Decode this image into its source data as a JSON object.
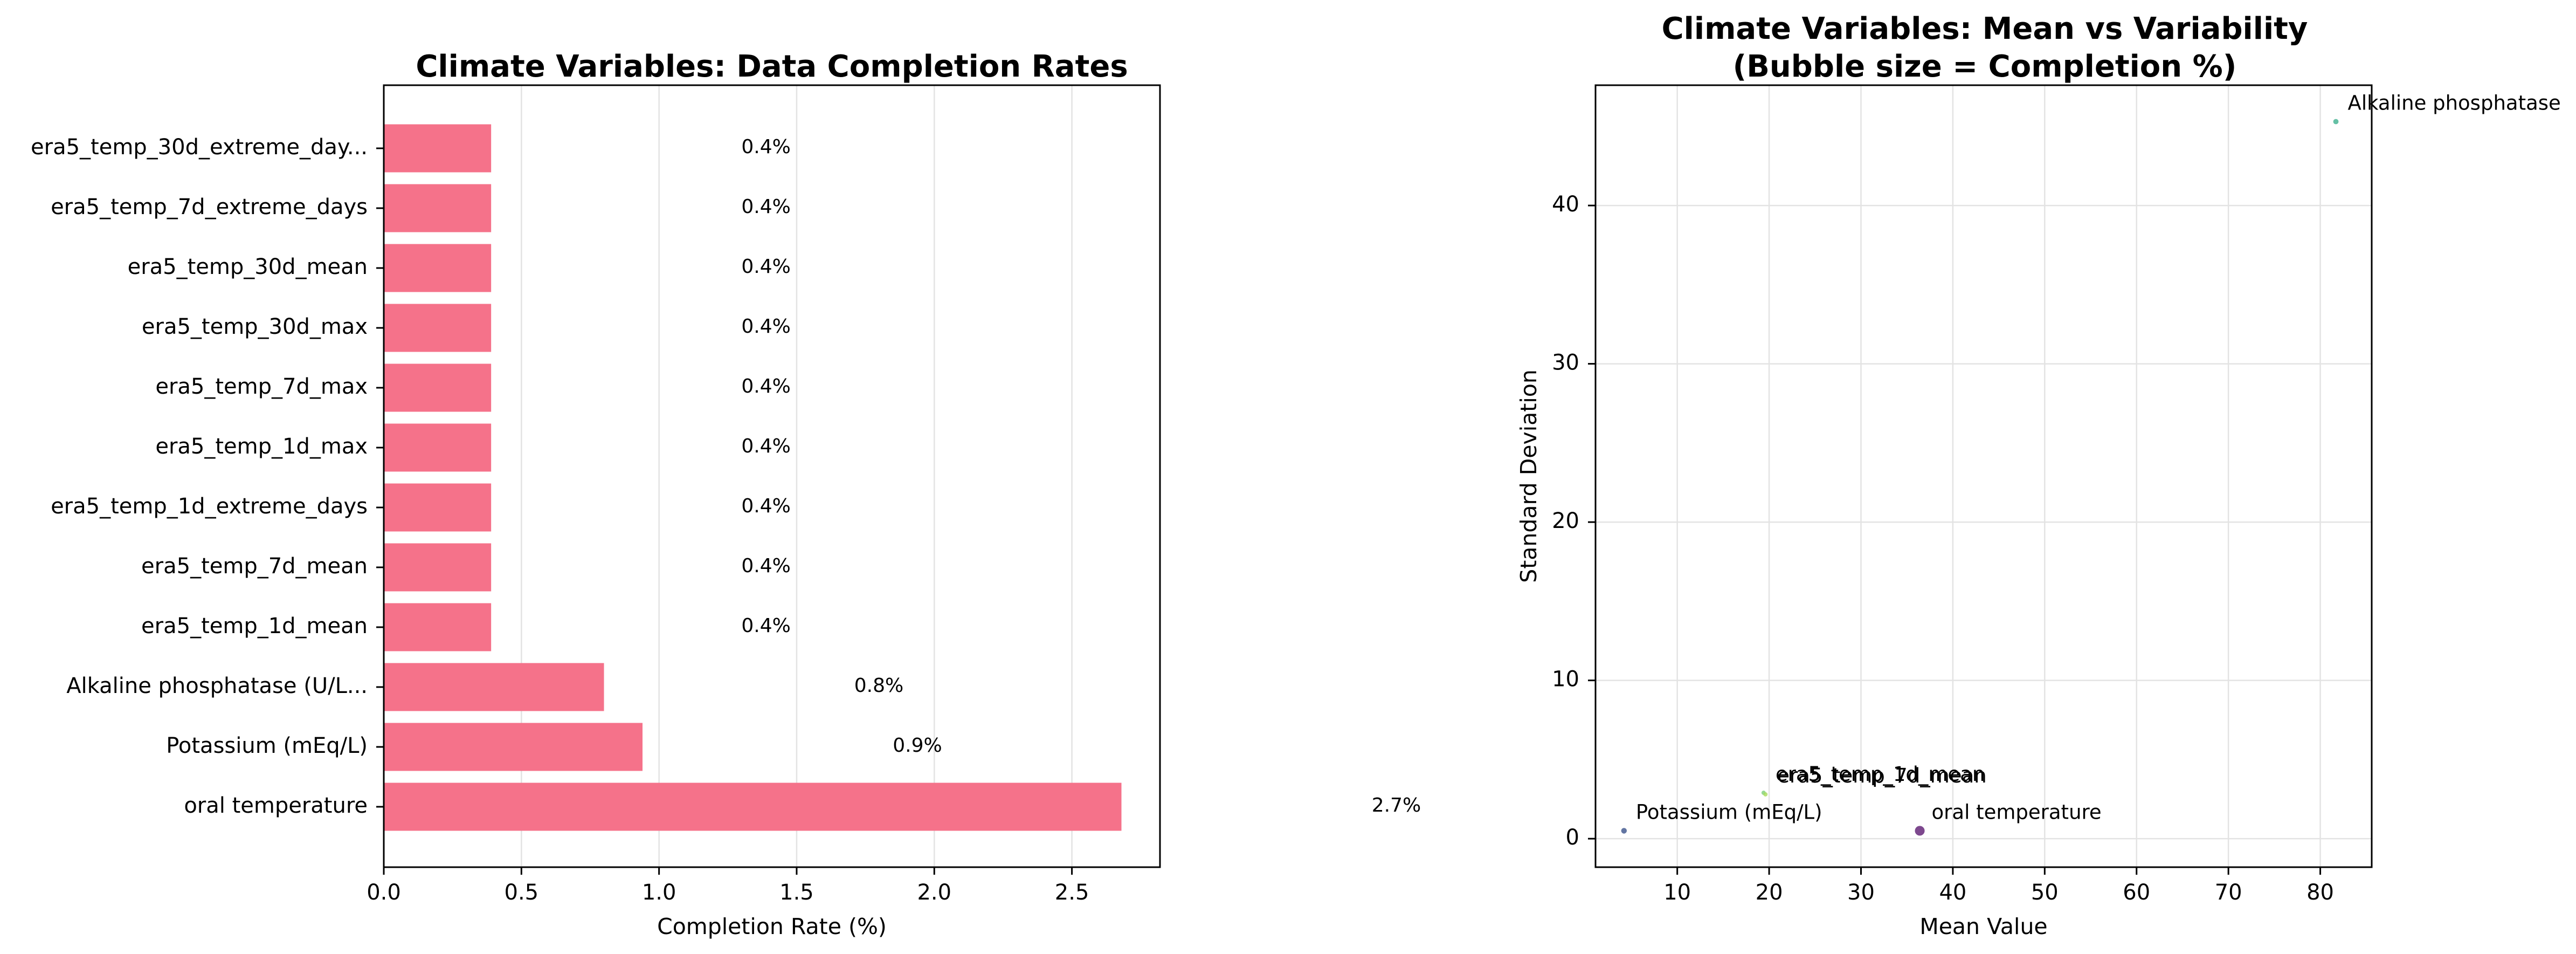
{
  "chart_data": [
    {
      "type": "bar",
      "orientation": "horizontal",
      "title": "Climate Variables: Data Completion Rates",
      "xlabel": "Completion Rate (%)",
      "ylabel": "",
      "xlim": [
        0,
        2.82
      ],
      "xticks": [
        "0.0",
        "0.5",
        "1.0",
        "1.5",
        "2.0",
        "2.5"
      ],
      "grid": "vertical",
      "color": "#f5728a",
      "categories": [
        "era5_temp_30d_extreme_day...",
        "era5_temp_7d_extreme_days",
        "era5_temp_30d_mean",
        "era5_temp_30d_max",
        "era5_temp_7d_max",
        "era5_temp_1d_max",
        "era5_temp_1d_extreme_days",
        "era5_temp_7d_mean",
        "era5_temp_1d_mean",
        "Alkaline phosphatase (U/L...",
        "Potassium (mEq/L)",
        "oral temperature"
      ],
      "values": [
        0.39,
        0.39,
        0.39,
        0.39,
        0.39,
        0.39,
        0.39,
        0.39,
        0.39,
        0.8,
        0.94,
        2.68
      ],
      "data_labels": [
        "0.4%",
        "0.4%",
        "0.4%",
        "0.4%",
        "0.4%",
        "0.4%",
        "0.4%",
        "0.4%",
        "0.4%",
        "0.8%",
        "0.9%",
        "2.7%"
      ]
    },
    {
      "type": "scatter",
      "title": "Climate Variables: Mean vs Variability\n(Bubble size = Completion %)",
      "xlabel": "Mean Value",
      "ylabel": "Standard Deviation",
      "xlim": [
        1.1,
        85.6
      ],
      "ylim": [
        -1.8,
        47.6
      ],
      "xticks": [
        10,
        20,
        30,
        40,
        50,
        60,
        70,
        80
      ],
      "yticks": [
        0,
        10,
        20,
        30,
        40
      ],
      "grid": "both",
      "points": [
        {
          "label": "Alkaline phosphatase",
          "x": 81.7,
          "y": 45.3,
          "size": 0.8,
          "color": "#3eb08f"
        },
        {
          "label": "era5_temp_1d_mean",
          "x": 19.4,
          "y": 2.9,
          "size": 0.4,
          "color": "#7dd07a"
        },
        {
          "label": "era5_temp_7d_mean",
          "x": 19.6,
          "y": 2.8,
          "size": 0.4,
          "color": "#a8db5c"
        },
        {
          "label": "Potassium (mEq/L)",
          "x": 4.2,
          "y": 0.5,
          "size": 0.9,
          "color": "#3b528b"
        },
        {
          "label": "oral temperature",
          "x": 36.4,
          "y": 0.5,
          "size": 2.7,
          "color": "#5c1a72"
        }
      ]
    }
  ]
}
